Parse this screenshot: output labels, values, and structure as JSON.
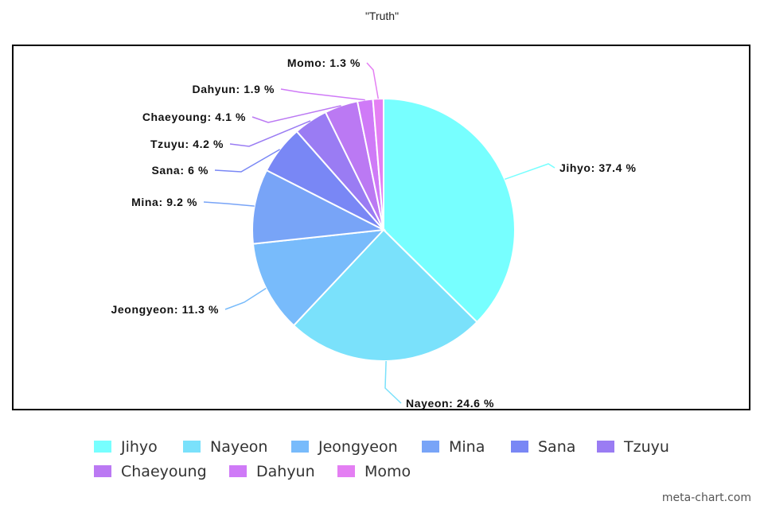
{
  "chart_data": {
    "type": "pie",
    "title": "\"Truth\"",
    "categories": [
      "Jihyo",
      "Nayeon",
      "Jeongyeon",
      "Mina",
      "Sana",
      "Tzuyu",
      "Chaeyoung",
      "Dahyun",
      "Momo"
    ],
    "values": [
      37.4,
      24.6,
      11.3,
      9.2,
      6,
      4.2,
      4.1,
      1.9,
      1.3
    ],
    "labels": [
      "Jihyo: 37.4 %",
      "Nayeon: 24.6 %",
      "Jeongyeon: 11.3 %",
      "Mina: 9.2 %",
      "Sana: 6 %",
      "Tzuyu: 4.2 %",
      "Chaeyoung: 4.1 %",
      "Dahyun: 1.9 %",
      "Momo: 1.3 %"
    ],
    "colors": [
      "#77ffff",
      "#7ae1fb",
      "#78bbfb",
      "#78a4f7",
      "#7987f5",
      "#9a7cf3",
      "#bb79f3",
      "#cf7af7",
      "#e47ff3"
    ],
    "legend_position": "bottom"
  },
  "credit": "meta-chart.com"
}
